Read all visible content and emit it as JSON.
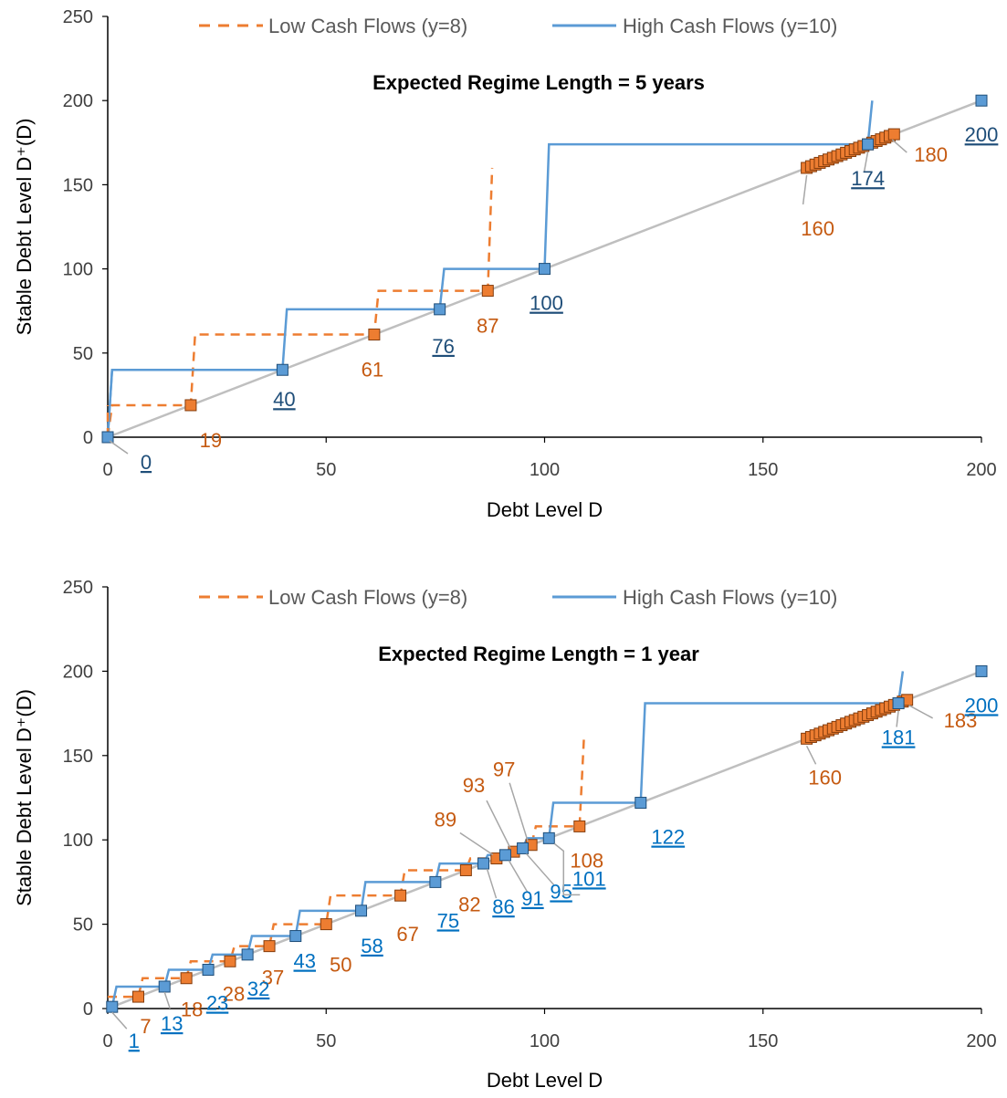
{
  "colors": {
    "low": "#ED7D31",
    "low_marker": "#E46C0A",
    "high": "#5B9BD5",
    "high_marker": "#4A86C5",
    "diagonal": "#BFBFBF",
    "axis": "#000000",
    "leader": "#A6A6A6",
    "low_label": "#C55A11",
    "high_label_top": "#1F4E79",
    "high_label_bottom": "#0070C0"
  },
  "chart_data": [
    {
      "type": "line",
      "title": "Expected Regime Length = 5 years",
      "xlabel": "Debt Level D",
      "ylabel": "Stable Debt Level D⁺(D)",
      "xlim": [
        0,
        200
      ],
      "ylim": [
        0,
        250
      ],
      "xticks": [
        0,
        50,
        100,
        150,
        200
      ],
      "yticks": [
        0,
        50,
        100,
        150,
        200,
        250
      ],
      "legend_position": "top",
      "series": [
        {
          "name": "Low Cash Flows (y=8)",
          "style": "dashed",
          "stable_points": [
            0,
            19,
            61,
            87,
            160,
            161,
            162,
            163,
            164,
            165,
            166,
            167,
            168,
            169,
            170,
            171,
            172,
            173,
            174,
            175,
            176,
            177,
            178,
            179,
            180
          ]
        },
        {
          "name": "High Cash Flows (y=10)",
          "style": "solid",
          "stable_points": [
            0,
            40,
            76,
            100,
            174,
            200
          ]
        }
      ],
      "annotations": {
        "low": [
          {
            "text": "19",
            "value": 19
          },
          {
            "text": "61",
            "value": 61
          },
          {
            "text": "87",
            "value": 87
          },
          {
            "text": "160",
            "value": 160
          },
          {
            "text": "180",
            "value": 180
          }
        ],
        "high": [
          {
            "text": "0",
            "value": 0
          },
          {
            "text": "40",
            "value": 40
          },
          {
            "text": "76",
            "value": 76
          },
          {
            "text": "100",
            "value": 100
          },
          {
            "text": "174",
            "value": 174
          },
          {
            "text": "200",
            "value": 200
          }
        ]
      }
    },
    {
      "type": "line",
      "title": "Expected Regime Length = 1 year",
      "xlabel": "Debt Level D",
      "ylabel": "Stable Debt Level D⁺(D)",
      "xlim": [
        0,
        200
      ],
      "ylim": [
        0,
        250
      ],
      "xticks": [
        0,
        50,
        100,
        150,
        200
      ],
      "yticks": [
        0,
        50,
        100,
        150,
        200,
        250
      ],
      "legend_position": "top",
      "series": [
        {
          "name": "Low Cash Flows (y=8)",
          "style": "dashed",
          "stable_points": [
            7,
            18,
            28,
            37,
            50,
            67,
            82,
            89,
            93,
            97,
            108,
            160,
            161,
            162,
            163,
            164,
            165,
            166,
            167,
            168,
            169,
            170,
            171,
            172,
            173,
            174,
            175,
            176,
            177,
            178,
            179,
            180,
            181,
            182,
            183
          ]
        },
        {
          "name": "High Cash Flows (y=10)",
          "style": "solid",
          "stable_points": [
            1,
            13,
            23,
            32,
            43,
            58,
            75,
            86,
            91,
            95,
            101,
            122,
            181,
            200
          ]
        }
      ],
      "annotations": {
        "low": [
          {
            "text": "7",
            "value": 7
          },
          {
            "text": "18",
            "value": 18
          },
          {
            "text": "28",
            "value": 28
          },
          {
            "text": "37",
            "value": 37
          },
          {
            "text": "50",
            "value": 50
          },
          {
            "text": "67",
            "value": 67
          },
          {
            "text": "82",
            "value": 82
          },
          {
            "text": "89",
            "value": 89
          },
          {
            "text": "93",
            "value": 93
          },
          {
            "text": "97",
            "value": 97
          },
          {
            "text": "108",
            "value": 108
          },
          {
            "text": "160",
            "value": 160
          },
          {
            "text": "183",
            "value": 183
          }
        ],
        "high": [
          {
            "text": "1",
            "value": 1
          },
          {
            "text": "13",
            "value": 13
          },
          {
            "text": "23",
            "value": 23
          },
          {
            "text": "32",
            "value": 32
          },
          {
            "text": "43",
            "value": 43
          },
          {
            "text": "58",
            "value": 58
          },
          {
            "text": "75",
            "value": 75
          },
          {
            "text": "86",
            "value": 86
          },
          {
            "text": "91",
            "value": 91
          },
          {
            "text": "95",
            "value": 95
          },
          {
            "text": "101",
            "value": 101
          },
          {
            "text": "122",
            "value": 122
          },
          {
            "text": "181",
            "value": 181
          },
          {
            "text": "200",
            "value": 200
          }
        ]
      }
    }
  ]
}
